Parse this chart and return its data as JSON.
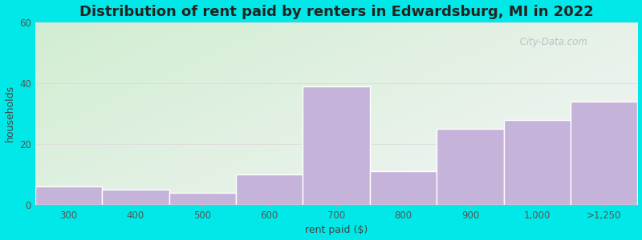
{
  "title": "Distribution of rent paid by renters in Edwardsburg, MI in 2022",
  "xlabel": "rent paid ($)",
  "ylabel": "households",
  "categories": [
    "300",
    "400",
    "500",
    "600",
    "700",
    "800",
    "900",
    "1,000",
    ">1,250"
  ],
  "values": [
    6,
    5,
    4,
    10,
    39,
    11,
    25,
    28,
    34
  ],
  "bar_color": "#c5b3d9",
  "bar_edge_color": "#ffffff",
  "ylim": [
    0,
    60
  ],
  "yticks": [
    0,
    20,
    40,
    60
  ],
  "bg_gradient_left_top": "#d0ecd0",
  "bg_gradient_right_bottom": "#f0f0f0",
  "fig_bg_color": "#00e8e8",
  "title_fontsize": 13,
  "axis_label_fontsize": 9,
  "tick_fontsize": 8.5,
  "watermark_text": " City-Data.com",
  "title_color": "#222222",
  "tick_color": "#555555",
  "label_color": "#444444",
  "grid_color": "#dddddd"
}
